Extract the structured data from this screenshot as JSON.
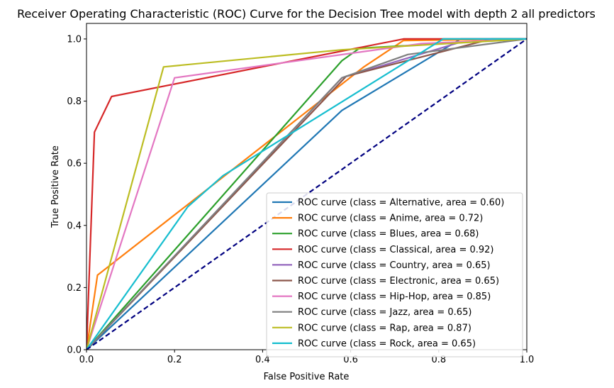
{
  "chart_data": {
    "type": "line",
    "title": "Receiver Operating Characteristic (ROC) Curve for the Decision Tree model with depth 2 all predictors",
    "xlabel": "False Positive Rate",
    "ylabel": "True Positive Rate",
    "xlim": [
      0.0,
      1.0
    ],
    "ylim": [
      0.0,
      1.05
    ],
    "xticks": [
      "0.0",
      "0.2",
      "0.4",
      "0.6",
      "0.8",
      "1.0"
    ],
    "yticks": [
      "0.0",
      "0.2",
      "0.4",
      "0.6",
      "0.8",
      "1.0"
    ],
    "grid": false,
    "legend_position": "lower-right",
    "baseline": {
      "x": [
        0,
        1
      ],
      "y": [
        0,
        1
      ],
      "color": "#000080",
      "style": "dashed"
    },
    "series": [
      {
        "name": "ROC curve (class = Alternative, area = 0.60)",
        "color": "#1f77b4",
        "x": [
          0,
          0.58,
          0.85,
          1
        ],
        "y": [
          0,
          0.77,
          1.0,
          1
        ]
      },
      {
        "name": "ROC curve (class = Anime, area = 0.72)",
        "color": "#ff7f0e",
        "x": [
          0,
          0.025,
          0.63,
          0.72,
          1
        ],
        "y": [
          0,
          0.24,
          0.91,
          0.995,
          1
        ]
      },
      {
        "name": "ROC curve (class = Blues, area = 0.68)",
        "color": "#2ca02c",
        "x": [
          0,
          0.58,
          0.62,
          1
        ],
        "y": [
          0,
          0.93,
          0.97,
          1
        ]
      },
      {
        "name": "ROC curve (class = Classical, area = 0.92)",
        "color": "#d62728",
        "x": [
          0,
          0.018,
          0.057,
          0.72,
          1
        ],
        "y": [
          0,
          0.7,
          0.815,
          1.0,
          1
        ]
      },
      {
        "name": "ROC curve (class = Country, area = 0.65)",
        "color": "#9467bd",
        "x": [
          0,
          0.58,
          0.85,
          1
        ],
        "y": [
          0,
          0.875,
          0.99,
          1
        ]
      },
      {
        "name": "ROC curve (class = Electronic, area = 0.65)",
        "color": "#8c564b",
        "x": [
          0,
          0.59,
          0.92,
          1
        ],
        "y": [
          0,
          0.88,
          1.0,
          1
        ]
      },
      {
        "name": "ROC curve (class = Hip-Hop, area = 0.85)",
        "color": "#e377c2",
        "x": [
          0,
          0.2,
          0.76,
          1
        ],
        "y": [
          0,
          0.875,
          0.985,
          1
        ]
      },
      {
        "name": "ROC curve (class = Jazz, area = 0.65)",
        "color": "#7f7f7f",
        "x": [
          0,
          0.58,
          0.73,
          1
        ],
        "y": [
          0,
          0.875,
          0.95,
          1
        ]
      },
      {
        "name": "ROC curve (class = Rap, area = 0.87)",
        "color": "#bcbd22",
        "x": [
          0,
          0.175,
          0.58,
          1
        ],
        "y": [
          0,
          0.91,
          0.965,
          1
        ]
      },
      {
        "name": "ROC curve (class = Rock, area = 0.65)",
        "color": "#17becf",
        "x": [
          0,
          0.23,
          0.31,
          0.81,
          1
        ],
        "y": [
          0,
          0.46,
          0.56,
          1.0,
          1
        ]
      }
    ]
  }
}
